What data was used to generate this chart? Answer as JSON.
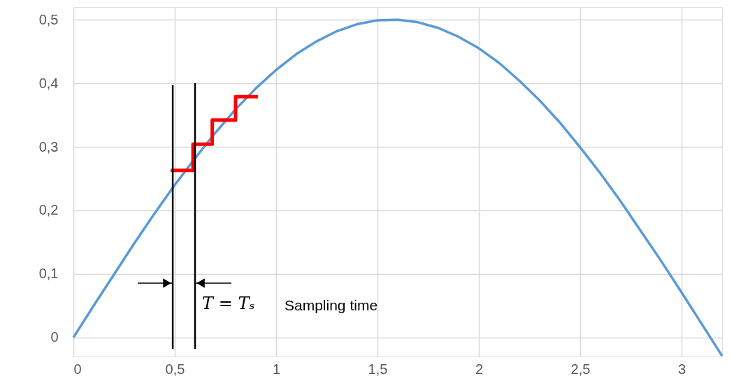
{
  "chart_data": {
    "type": "line",
    "xlim": [
      0,
      3.2
    ],
    "ylim": [
      -0.03,
      0.52
    ],
    "xticks": [
      0,
      {
        "value": 0.5,
        "label": "0,5"
      },
      1,
      {
        "value": 1.5,
        "label": "1,5"
      },
      2,
      {
        "value": 2.5,
        "label": "2,5"
      },
      3
    ],
    "yticks": [
      0,
      {
        "value": 0.1,
        "label": "0,1"
      },
      {
        "value": 0.2,
        "label": "0,2"
      },
      {
        "value": 0.3,
        "label": "0,3"
      },
      {
        "value": 0.4,
        "label": "0,4"
      },
      {
        "value": 0.5,
        "label": "0,5"
      }
    ],
    "grid": true,
    "marker": "none",
    "line_style": "solid",
    "series": [
      {
        "type": "line",
        "color": "#5b9bd5",
        "x": [
          0,
          0.1,
          0.2,
          0.3,
          0.4,
          0.5,
          0.6,
          0.7,
          0.8,
          0.9,
          1.0,
          1.1,
          1.2,
          1.3,
          1.4,
          1.5,
          1.6,
          1.7,
          1.8,
          1.9,
          2.0,
          2.1,
          2.2,
          2.3,
          2.4,
          2.5,
          2.6,
          2.7,
          2.8,
          2.9,
          3.0,
          3.1,
          3.2
        ],
        "values": [
          0,
          0.05,
          0.099,
          0.148,
          0.195,
          0.24,
          0.282,
          0.322,
          0.359,
          0.392,
          0.421,
          0.446,
          0.466,
          0.482,
          0.493,
          0.499,
          0.5,
          0.496,
          0.487,
          0.473,
          0.455,
          0.432,
          0.404,
          0.373,
          0.338,
          0.299,
          0.258,
          0.214,
          0.167,
          0.12,
          0.071,
          0.021,
          -0.029
        ]
      },
      {
        "type": "step",
        "color": "#ff0000",
        "x": [
          0.48,
          0.59,
          0.685,
          0.8,
          0.91
        ],
        "values": [
          0.263,
          0.304,
          0.342,
          0.379,
          0.379
        ]
      },
      {
        "type": "line",
        "color": "#000000",
        "x": [
          0.49,
          0.49
        ],
        "values": [
          0.397,
          -0.018
        ]
      },
      {
        "type": "line",
        "color": "#000000",
        "x": [
          0.6,
          0.6
        ],
        "values": [
          0.4,
          -0.018
        ]
      }
    ],
    "annotations": [
      "T = Tₛ",
      "Sampling time"
    ]
  }
}
